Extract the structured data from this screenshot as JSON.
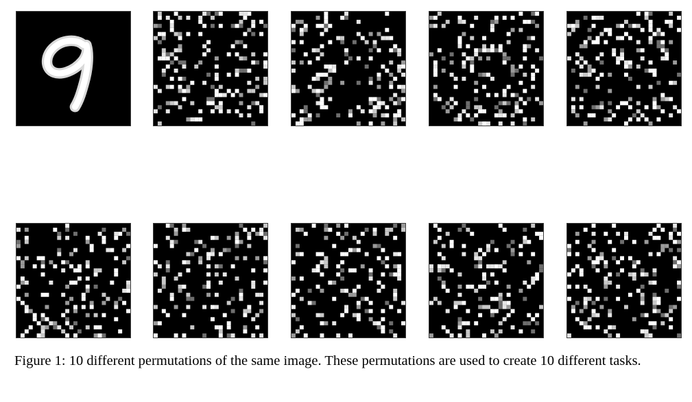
{
  "figure": {
    "caption": "Figure 1: 10 different permutations of the same image. These permutations are used to create 10 different tasks.",
    "panels": [
      {
        "content": "original digit 9"
      },
      {
        "content": "permutation 1"
      },
      {
        "content": "permutation 2"
      },
      {
        "content": "permutation 3"
      },
      {
        "content": "permutation 4"
      },
      {
        "content": "permutation 5"
      },
      {
        "content": "permutation 6"
      },
      {
        "content": "permutation 7"
      },
      {
        "content": "permutation 8"
      },
      {
        "content": "permutation 9"
      }
    ]
  }
}
